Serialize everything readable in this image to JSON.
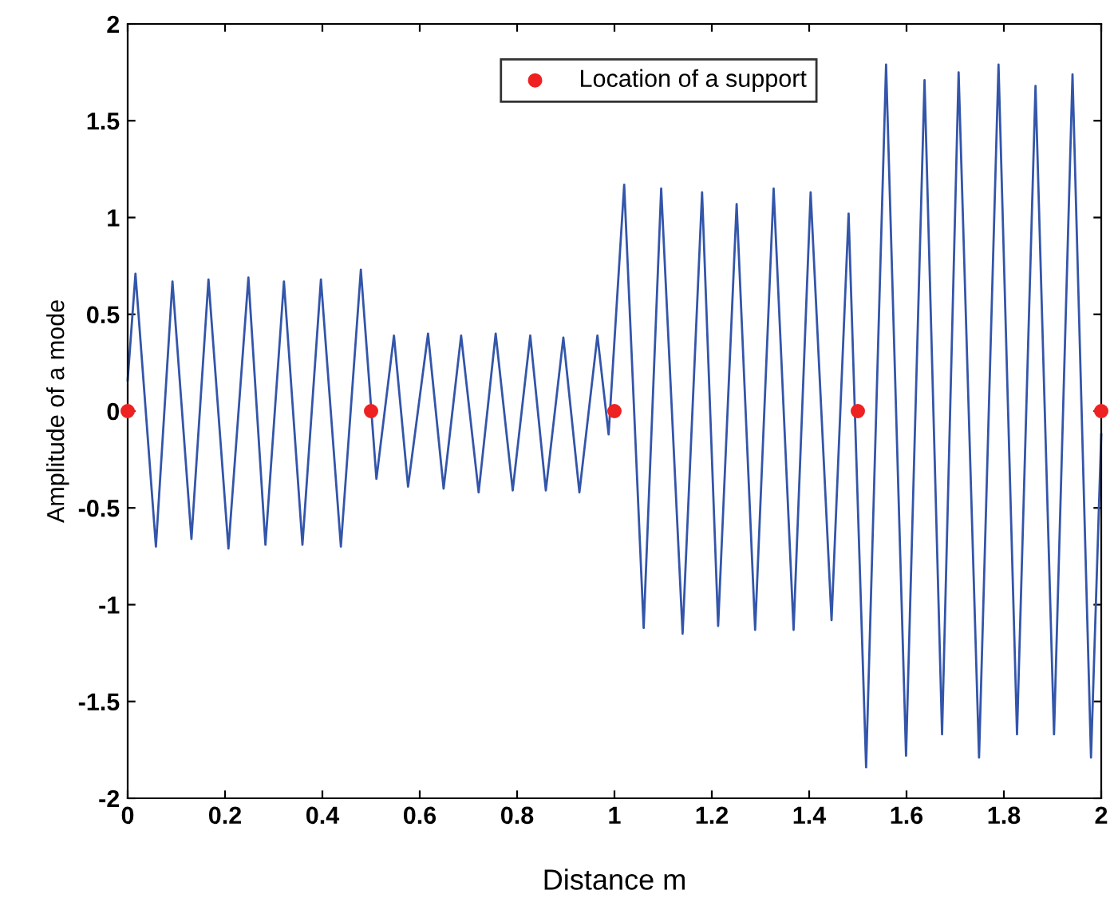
{
  "chart_data": {
    "type": "line",
    "xlabel": "Distance m",
    "ylabel": "Amplitude of a mode",
    "xlim": [
      0,
      2
    ],
    "ylim": [
      -2,
      2
    ],
    "xticks": [
      0,
      0.2,
      0.4,
      0.6,
      0.8,
      1,
      1.2,
      1.4,
      1.6,
      1.8,
      2
    ],
    "yticks": [
      -2,
      -1.5,
      -1,
      -0.5,
      0,
      0.5,
      1,
      1.5,
      2
    ],
    "grid": false,
    "legend": "top right",
    "series": [
      {
        "color": "#3355aa",
        "marker": "none",
        "line_style": "solid",
        "x": [
          0,
          0.016,
          0.058,
          0.092,
          0.131,
          0.166,
          0.207,
          0.248,
          0.283,
          0.321,
          0.359,
          0.397,
          0.438,
          0.479,
          0.511,
          0.547,
          0.576,
          0.617,
          0.649,
          0.685,
          0.721,
          0.756,
          0.791,
          0.827,
          0.859,
          0.895,
          0.928,
          0.965,
          0.988,
          1.02,
          1.06,
          1.096,
          1.14,
          1.18,
          1.213,
          1.251,
          1.289,
          1.327,
          1.368,
          1.403,
          1.446,
          1.481,
          1.517,
          1.558,
          1.599,
          1.637,
          1.673,
          1.707,
          1.749,
          1.789,
          1.827,
          1.865,
          1.903,
          1.941,
          1.979,
          2
        ],
        "values": [
          0.16,
          0.71,
          -0.7,
          0.67,
          -0.66,
          0.68,
          -0.71,
          0.69,
          -0.69,
          0.67,
          -0.69,
          0.68,
          -0.7,
          0.73,
          -0.35,
          0.39,
          -0.39,
          0.4,
          -0.4,
          0.39,
          -0.42,
          0.4,
          -0.41,
          0.39,
          -0.41,
          0.38,
          -0.42,
          0.39,
          -0.12,
          1.17,
          -1.12,
          1.15,
          -1.15,
          1.13,
          -1.11,
          1.07,
          -1.13,
          1.15,
          -1.13,
          1.13,
          -1.08,
          1.02,
          -1.84,
          1.79,
          -1.78,
          1.71,
          -1.67,
          1.75,
          -1.79,
          1.79,
          -1.67,
          1.68,
          -1.67,
          1.74,
          -1.79,
          -0.12
        ]
      },
      {
        "type": "scatter",
        "name": "Location of a support",
        "color": "#ee2222",
        "marker": "circle",
        "x": [
          0,
          0.5,
          1,
          1.5,
          2
        ],
        "values": [
          0,
          0,
          0,
          0,
          0
        ]
      }
    ]
  }
}
